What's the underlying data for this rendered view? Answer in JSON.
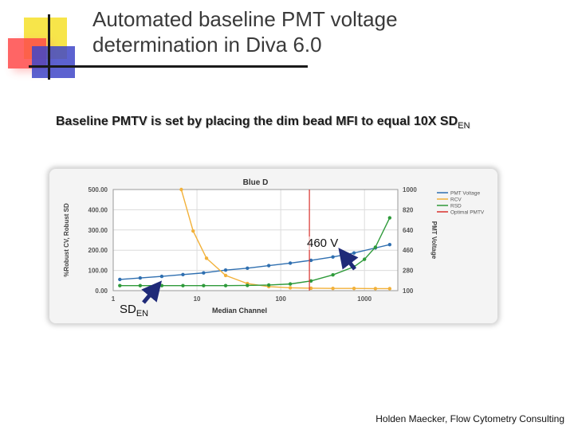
{
  "slide": {
    "title": "Automated baseline PMT voltage determination in Diva 6.0",
    "subtitle_main": "Baseline PMTV is set by placing the dim bead MFI to equal 10X SD",
    "subtitle_sub": "EN",
    "annotation_voltage": "460 V",
    "annotation_sd_main": "SD",
    "annotation_sd_sub": "EN",
    "footer": "Holden Maecker, Flow Cytometry Consulting"
  },
  "chart_data": {
    "type": "line",
    "title": "Blue D",
    "xlabel": "Median Channel",
    "ylabel_left": "%Robust CV, Robust SD",
    "ylabel_right": "PMT Voltage",
    "x_scale": "log",
    "xlim": [
      1,
      2500
    ],
    "x_ticks": [
      1,
      10,
      100,
      1000
    ],
    "x_tick_labels": [
      "1",
      "10",
      "100",
      "1000"
    ],
    "ylim_left": [
      0,
      500
    ],
    "y_ticks_left": [
      "0.00",
      "100.00",
      "200.00",
      "300.00",
      "400.00",
      "500.00"
    ],
    "ylim_right": [
      100,
      1000
    ],
    "y_ticks_right": [
      "100",
      "280",
      "460",
      "640",
      "820",
      "1000"
    ],
    "grid": true,
    "legend_position": "right",
    "optimal_pmtv_x": 220,
    "series": [
      {
        "name": "PMT Voltage",
        "axis": "right",
        "color": "#2f6fb0",
        "x": [
          1.2,
          2.1,
          3.8,
          6.8,
          12,
          22,
          40,
          72,
          130,
          230,
          420,
          750,
          1350,
          2000
        ],
        "y": [
          200,
          213,
          227,
          243,
          258,
          283,
          300,
          323,
          345,
          370,
          400,
          435,
          480,
          510
        ]
      },
      {
        "name": "RCV",
        "axis": "left",
        "color": "#f2b13a",
        "x": [
          6.5,
          9,
          13,
          22,
          40,
          72,
          130,
          230,
          420,
          750,
          1350,
          2000
        ],
        "y": [
          500,
          295,
          160,
          75,
          35,
          20,
          14,
          12,
          11,
          11,
          10,
          10
        ]
      },
      {
        "name": "RSD",
        "axis": "left",
        "color": "#2e9a3a",
        "x": [
          1.2,
          2.1,
          3.8,
          6.8,
          12,
          22,
          40,
          72,
          130,
          230,
          420,
          750,
          1000,
          1350,
          2000
        ],
        "y": [
          25,
          25,
          25,
          25,
          25,
          25,
          26,
          28,
          33,
          48,
          78,
          118,
          155,
          215,
          360
        ]
      },
      {
        "name": "Optimal PMTV",
        "axis": "left",
        "color": "#d9302c",
        "x": [
          220,
          220
        ],
        "y": [
          0,
          500
        ]
      }
    ]
  }
}
